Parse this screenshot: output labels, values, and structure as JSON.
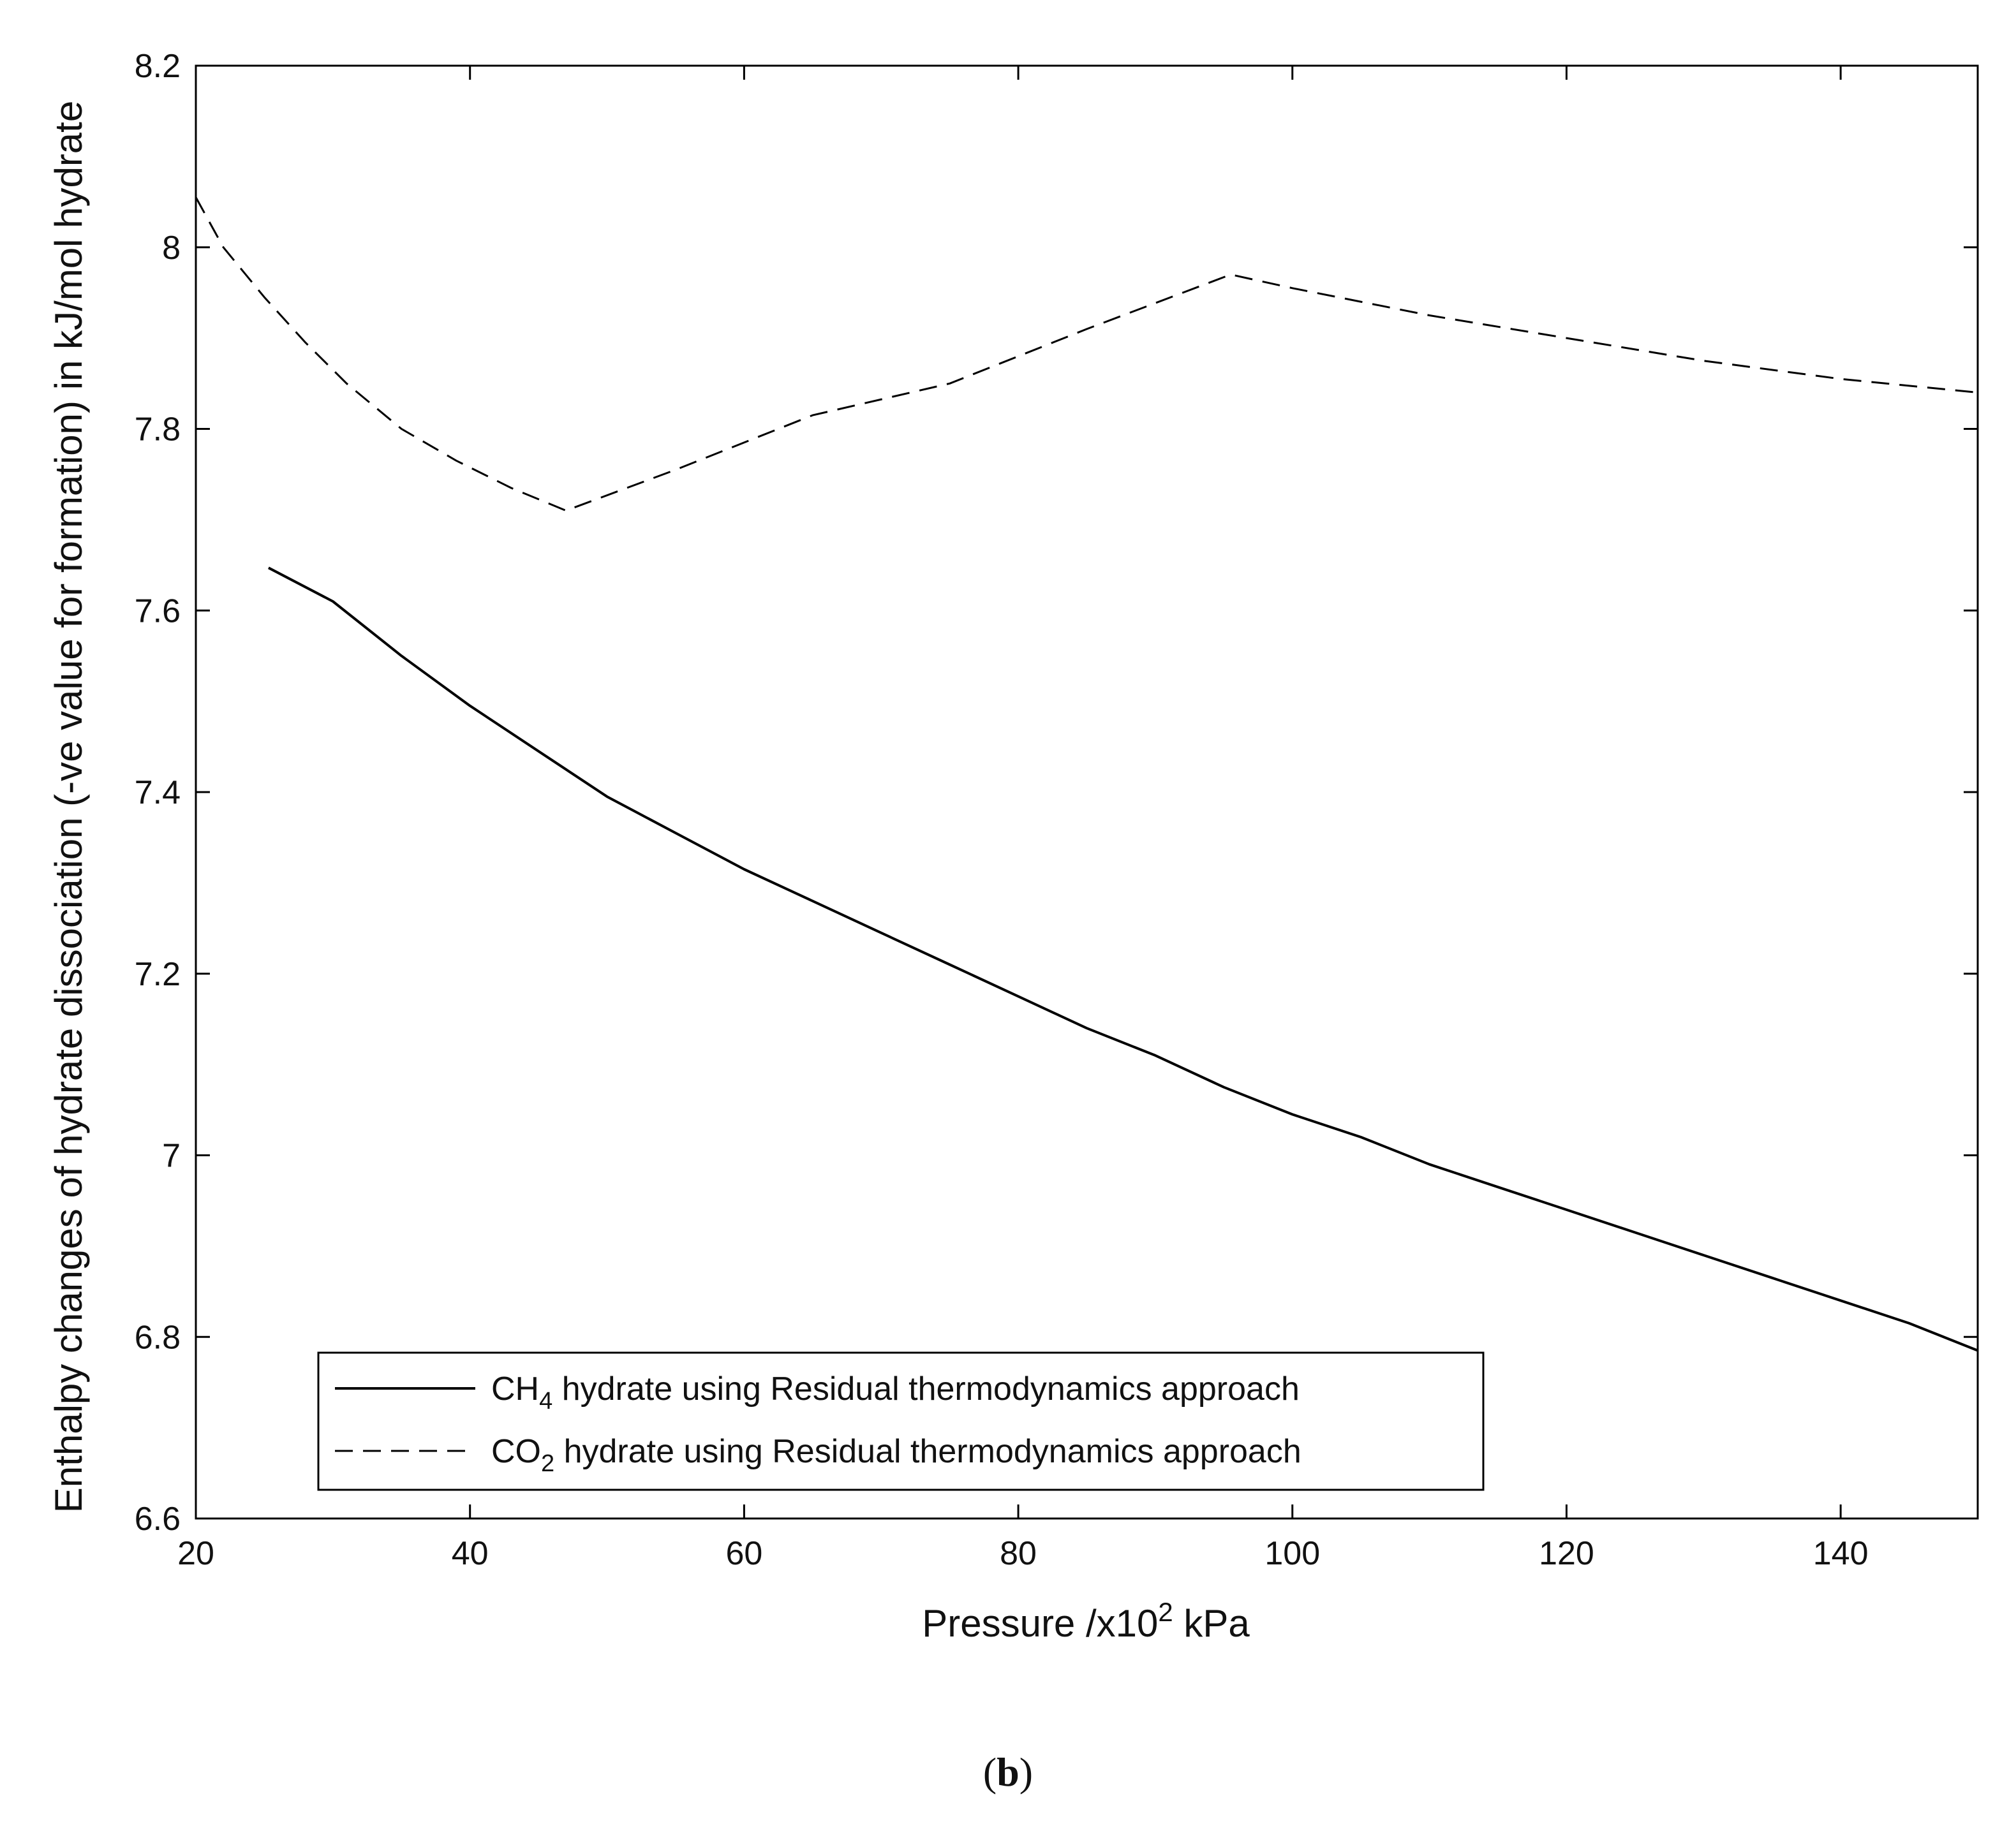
{
  "chart_data": {
    "type": "line",
    "title": "",
    "xlabel": {
      "prefix": "Pressure /x10",
      "sup": "2",
      "suffix": " kPa"
    },
    "ylabel": "Enthalpy changes of hydrate dissociation (-ve value for formation) in kJ/mol hydrate",
    "xlim": [
      20,
      150
    ],
    "ylim": [
      6.6,
      8.2
    ],
    "xticks": [
      20,
      40,
      60,
      80,
      100,
      120,
      140
    ],
    "yticks": [
      6.6,
      6.8,
      7.0,
      7.2,
      7.4,
      7.6,
      7.8,
      8.0,
      8.2
    ],
    "ytick_labels": [
      "6.6",
      "6.8",
      "7",
      "7.2",
      "7.4",
      "7.6",
      "7.8",
      "8",
      "8.2"
    ],
    "grid": false,
    "legend_position": "bottom-left",
    "series": [
      {
        "name": {
          "pre": "CH",
          "sub": "4",
          "post": " hydrate using Residual thermodynamics approach"
        },
        "style": "solid",
        "color": "#000000",
        "x": [
          25.3,
          30,
          35,
          40,
          45,
          50,
          55,
          60,
          65,
          70,
          75,
          80,
          85,
          90,
          95,
          100,
          105,
          110,
          115,
          120,
          125,
          130,
          135,
          140,
          145,
          150
        ],
        "y": [
          7.647,
          7.61,
          7.55,
          7.495,
          7.445,
          7.395,
          7.355,
          7.315,
          7.28,
          7.245,
          7.21,
          7.175,
          7.14,
          7.11,
          7.075,
          7.045,
          7.02,
          6.99,
          6.965,
          6.94,
          6.915,
          6.89,
          6.865,
          6.84,
          6.815,
          6.785
        ]
      },
      {
        "name": {
          "pre": "CO",
          "sub": "2",
          "post": " hydrate using Residual thermodynamics approach"
        },
        "style": "dashed",
        "color": "#000000",
        "x": [
          20,
          22,
          25,
          28,
          31,
          35,
          39,
          43,
          47,
          55,
          65,
          75,
          85,
          95.5,
          100,
          110,
          120,
          130,
          140,
          150
        ],
        "y": [
          8.055,
          8.0,
          7.945,
          7.895,
          7.85,
          7.8,
          7.765,
          7.735,
          7.71,
          7.755,
          7.815,
          7.85,
          7.91,
          7.97,
          7.955,
          7.925,
          7.9,
          7.875,
          7.855,
          7.84
        ]
      }
    ]
  },
  "caption": {
    "open": "(",
    "letter": "b",
    "close": ")"
  }
}
